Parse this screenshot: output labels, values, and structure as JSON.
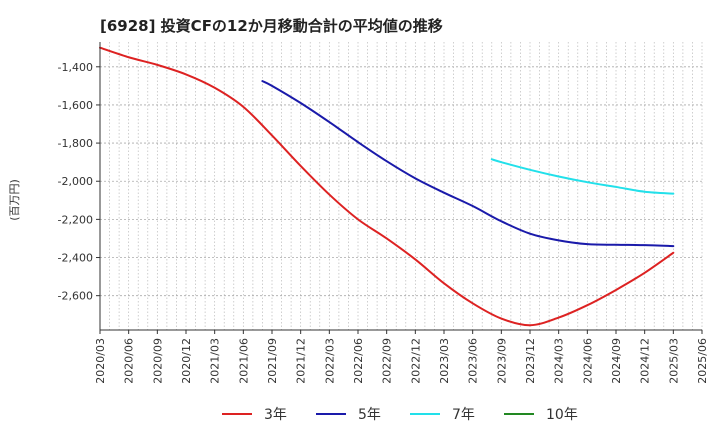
{
  "chart_data": {
    "type": "line",
    "title": "[6928]  投資CFの12か月移動合計の平均値の推移",
    "ylabel": "(百万円)",
    "xlabel": "",
    "x_ticks": [
      "2020/03",
      "2020/06",
      "2020/09",
      "2020/12",
      "2021/03",
      "2021/06",
      "2021/09",
      "2021/12",
      "2022/03",
      "2022/06",
      "2022/09",
      "2022/12",
      "2023/03",
      "2023/06",
      "2023/09",
      "2023/12",
      "2024/03",
      "2024/06",
      "2024/09",
      "2024/12",
      "2025/03",
      "2025/06"
    ],
    "y_ticks": [
      -1400,
      -1600,
      -1800,
      -2000,
      -2200,
      -2400,
      -2600
    ],
    "ylim": [
      -2780,
      -1270
    ],
    "grid": true,
    "legend_position": "bottom",
    "series": [
      {
        "name": "3年",
        "color": "#dd2222",
        "points": [
          [
            "2020/03",
            -1300
          ],
          [
            "2020/06",
            -1350
          ],
          [
            "2020/09",
            -1390
          ],
          [
            "2020/12",
            -1440
          ],
          [
            "2021/03",
            -1510
          ],
          [
            "2021/06",
            -1610
          ],
          [
            "2021/09",
            -1760
          ],
          [
            "2021/12",
            -1920
          ],
          [
            "2022/03",
            -2070
          ],
          [
            "2022/06",
            -2200
          ],
          [
            "2022/09",
            -2300
          ],
          [
            "2022/12",
            -2410
          ],
          [
            "2023/03",
            -2535
          ],
          [
            "2023/06",
            -2640
          ],
          [
            "2023/09",
            -2720
          ],
          [
            "2023/12",
            -2755
          ],
          [
            "2024/03",
            -2715
          ],
          [
            "2024/06",
            -2650
          ],
          [
            "2024/09",
            -2570
          ],
          [
            "2024/12",
            -2480
          ],
          [
            "2025/03",
            -2375
          ]
        ]
      },
      {
        "name": "5年",
        "color": "#1a1aaa",
        "points": [
          [
            "2021/08",
            -1475
          ],
          [
            "2021/09",
            -1500
          ],
          [
            "2021/12",
            -1590
          ],
          [
            "2022/03",
            -1690
          ],
          [
            "2022/06",
            -1795
          ],
          [
            "2022/09",
            -1895
          ],
          [
            "2022/12",
            -1985
          ],
          [
            "2023/03",
            -2060
          ],
          [
            "2023/06",
            -2130
          ],
          [
            "2023/09",
            -2210
          ],
          [
            "2023/12",
            -2275
          ],
          [
            "2024/03",
            -2310
          ],
          [
            "2024/06",
            -2330
          ],
          [
            "2024/09",
            -2333
          ],
          [
            "2024/12",
            -2335
          ],
          [
            "2025/03",
            -2340
          ]
        ]
      },
      {
        "name": "7年",
        "color": "#22e0ea",
        "points": [
          [
            "2023/08",
            -1885
          ],
          [
            "2023/09",
            -1900
          ],
          [
            "2023/12",
            -1940
          ],
          [
            "2024/03",
            -1975
          ],
          [
            "2024/06",
            -2005
          ],
          [
            "2024/09",
            -2030
          ],
          [
            "2024/12",
            -2055
          ],
          [
            "2025/03",
            -2065
          ]
        ]
      },
      {
        "name": "10年",
        "color": "#228822",
        "points": []
      }
    ]
  }
}
